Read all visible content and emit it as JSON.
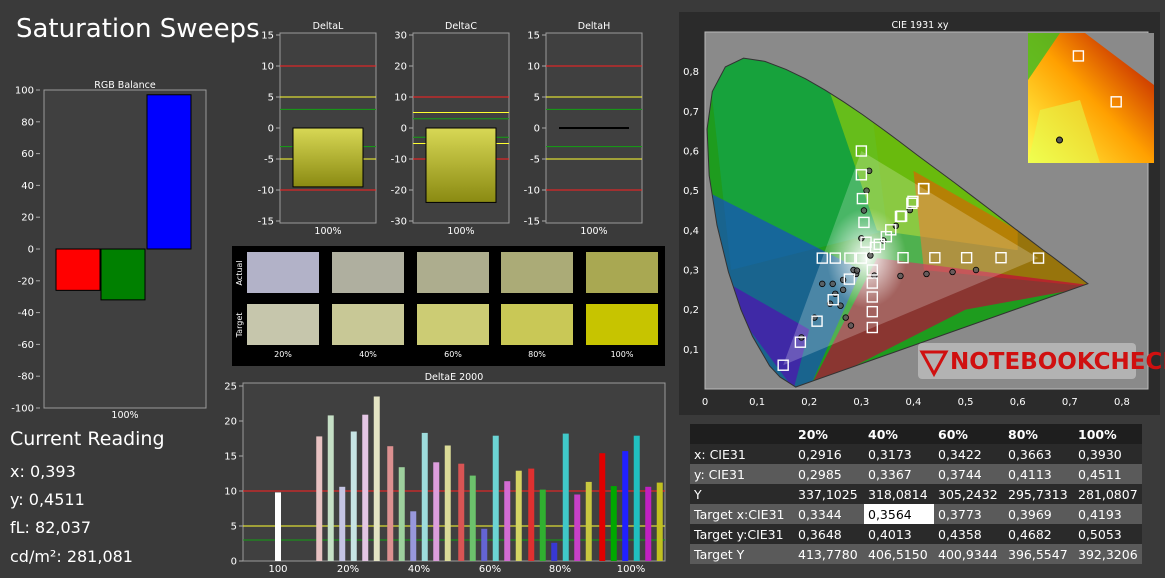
{
  "title": "Saturation Sweeps",
  "current_reading": {
    "heading": "Current Reading",
    "x": "x: 0,393",
    "y": "y: 0,4511",
    "fl": "fL: 82,037",
    "cd": "cd/m²: 281,081"
  },
  "watermark": "NOTEBOOKCHECK",
  "colors": {
    "red": "#ff0000",
    "green": "#008000",
    "blue": "#0000ff",
    "yellow": "#ffff00",
    "lime": "#00c000",
    "grid": "#bfbfbf"
  },
  "chart_data": [
    {
      "id": "rgb-balance",
      "type": "bar",
      "title": "RGB Balance",
      "categories": [
        "R",
        "G",
        "B"
      ],
      "values": [
        -26,
        -32,
        97
      ],
      "colors": [
        "#ff0000",
        "#008000",
        "#0000ff"
      ],
      "xlabel": "100%",
      "ylim": [
        -100,
        100
      ],
      "yticks": [
        "100",
        "80",
        "60",
        "40",
        "20",
        "0",
        "-20",
        "-40",
        "-60",
        "-80",
        "-100"
      ]
    },
    {
      "id": "delta-l",
      "type": "bar",
      "title": "DeltaL",
      "values": [
        -9.5
      ],
      "xlabel": "100%",
      "ylim": [
        -15,
        15
      ],
      "yticks": [
        "15",
        "10",
        "5",
        "0",
        "-5",
        "-10",
        "-15"
      ],
      "reference_lines": [
        {
          "y": 10,
          "color": "red"
        },
        {
          "y": -10,
          "color": "red"
        },
        {
          "y": 5,
          "color": "yellow"
        },
        {
          "y": -5,
          "color": "yellow"
        },
        {
          "y": 3,
          "color": "green"
        },
        {
          "y": -3,
          "color": "green"
        }
      ]
    },
    {
      "id": "delta-c",
      "type": "bar",
      "title": "DeltaC",
      "values": [
        -24
      ],
      "xlabel": "100%",
      "ylim": [
        -30,
        30
      ],
      "yticks": [
        "30",
        "20",
        "10",
        "0",
        "-10",
        "-20",
        "-30"
      ],
      "reference_lines": [
        {
          "y": 10,
          "color": "red"
        },
        {
          "y": -10,
          "color": "red"
        },
        {
          "y": 5,
          "color": "yellow"
        },
        {
          "y": -5,
          "color": "yellow"
        },
        {
          "y": 3,
          "color": "green"
        },
        {
          "y": -3,
          "color": "green"
        }
      ]
    },
    {
      "id": "delta-h",
      "type": "bar",
      "title": "DeltaH",
      "values": [
        0
      ],
      "xlabel": "100%",
      "ylim": [
        -15,
        15
      ],
      "yticks": [
        "15",
        "10",
        "5",
        "0",
        "-5",
        "-10",
        "-15"
      ],
      "reference_lines": [
        {
          "y": 10,
          "color": "red"
        },
        {
          "y": -10,
          "color": "red"
        },
        {
          "y": 5,
          "color": "yellow"
        },
        {
          "y": -5,
          "color": "yellow"
        },
        {
          "y": 3,
          "color": "green"
        },
        {
          "y": -3,
          "color": "green"
        }
      ]
    },
    {
      "id": "swatches",
      "type": "table",
      "rows": [
        "Actual",
        "Target"
      ],
      "columns": [
        "20%",
        "40%",
        "60%",
        "80%",
        "100%"
      ],
      "actual_colors": [
        "#b2b2c8",
        "#afaf9f",
        "#adad8e",
        "#abab77",
        "#a9a852"
      ],
      "target_colors": [
        "#c6c6ac",
        "#c8c896",
        "#cccc74",
        "#c9c856",
        "#c7c400"
      ]
    },
    {
      "id": "delta-e-2000",
      "type": "bar",
      "title": "DeltaE 2000",
      "categories": [
        "100",
        "20%",
        "40%",
        "60%",
        "80%",
        "100%"
      ],
      "ylim": [
        0,
        25
      ],
      "yticks": [
        "25",
        "20",
        "15",
        "10",
        "5",
        "0"
      ],
      "reference_lines": [
        {
          "y": 10,
          "color": "red"
        },
        {
          "y": 5,
          "color": "yellow"
        },
        {
          "y": 3,
          "color": "green"
        }
      ],
      "groups": [
        {
          "bars": [
            {
              "v": 9.8,
              "c": "#ffffff"
            }
          ]
        },
        {
          "bars": [
            {
              "v": 17.8,
              "c": "#e8c2c2"
            },
            {
              "v": 20.8,
              "c": "#c6e0c6"
            },
            {
              "v": 10.6,
              "c": "#c4c4e4"
            },
            {
              "v": 18.5,
              "c": "#c6e4e4"
            },
            {
              "v": 20.9,
              "c": "#e4c6e4"
            },
            {
              "v": 23.5,
              "c": "#e4e4c4"
            }
          ]
        },
        {
          "bars": [
            {
              "v": 16.4,
              "c": "#dc9090"
            },
            {
              "v": 13.4,
              "c": "#9ed09e"
            },
            {
              "v": 7.1,
              "c": "#9898dc"
            },
            {
              "v": 18.3,
              "c": "#9edcdc"
            },
            {
              "v": 14.1,
              "c": "#dc9edc"
            },
            {
              "v": 16.5,
              "c": "#dcdc98"
            }
          ]
        },
        {
          "bars": [
            {
              "v": 13.9,
              "c": "#d85454"
            },
            {
              "v": 12.2,
              "c": "#6cc26c"
            },
            {
              "v": 4.6,
              "c": "#6464d4"
            },
            {
              "v": 17.9,
              "c": "#6cd4d4"
            },
            {
              "v": 11.4,
              "c": "#d46cd4"
            },
            {
              "v": 12.9,
              "c": "#d4d464"
            }
          ]
        },
        {
          "bars": [
            {
              "v": 13.2,
              "c": "#e03030"
            },
            {
              "v": 10.2,
              "c": "#30b030"
            },
            {
              "v": 2.6,
              "c": "#3838d4"
            },
            {
              "v": 18.2,
              "c": "#40c8c8"
            },
            {
              "v": 9.5,
              "c": "#c840c8"
            },
            {
              "v": 11.3,
              "c": "#c8c840"
            }
          ]
        },
        {
          "bars": [
            {
              "v": 15.4,
              "c": "#e00000"
            },
            {
              "v": 10.7,
              "c": "#00a800"
            },
            {
              "v": 15.7,
              "c": "#2020ff"
            },
            {
              "v": 17.9,
              "c": "#20c0c0"
            },
            {
              "v": 10.6,
              "c": "#c020c0"
            },
            {
              "v": 11.2,
              "c": "#c0c020"
            }
          ]
        }
      ]
    },
    {
      "id": "cie-1931",
      "type": "scatter",
      "title": "CIE 1931 xy",
      "xlim": [
        0,
        0.85
      ],
      "ylim": [
        0,
        0.9
      ],
      "xticks": [
        "0",
        "0,1",
        "0,2",
        "0,3",
        "0,4",
        "0,5",
        "0,6",
        "0,7",
        "0,8"
      ],
      "yticks": [
        "0,8",
        "0,7",
        "0,6",
        "0,5",
        "0,4",
        "0,3",
        "0,2",
        "0,1"
      ],
      "targets": [
        [
          0.64,
          0.33
        ],
        [
          0.568,
          0.331
        ],
        [
          0.502,
          0.331
        ],
        [
          0.441,
          0.331
        ],
        [
          0.38,
          0.331
        ],
        [
          0.3,
          0.6
        ],
        [
          0.3,
          0.54
        ],
        [
          0.302,
          0.48
        ],
        [
          0.305,
          0.42
        ],
        [
          0.309,
          0.37
        ],
        [
          0.15,
          0.06
        ],
        [
          0.183,
          0.118
        ],
        [
          0.215,
          0.171
        ],
        [
          0.246,
          0.225
        ],
        [
          0.277,
          0.277
        ],
        [
          0.225,
          0.33
        ],
        [
          0.25,
          0.33
        ],
        [
          0.278,
          0.33
        ],
        [
          0.3,
          0.33
        ],
        [
          0.321,
          0.3
        ],
        [
          0.321,
          0.267
        ],
        [
          0.321,
          0.232
        ],
        [
          0.321,
          0.195
        ],
        [
          0.321,
          0.155
        ],
        [
          0.42,
          0.505
        ],
        [
          0.399,
          0.473
        ],
        [
          0.375,
          0.435
        ],
        [
          0.348,
          0.384
        ],
        [
          0.327,
          0.357
        ],
        [
          0.3344,
          0.3648
        ],
        [
          0.3564,
          0.4013
        ],
        [
          0.3773,
          0.4358
        ],
        [
          0.3969,
          0.4682
        ],
        [
          0.4193,
          0.5053
        ]
      ],
      "measured": [
        [
          0.52,
          0.3
        ],
        [
          0.475,
          0.295
        ],
        [
          0.425,
          0.29
        ],
        [
          0.375,
          0.285
        ],
        [
          0.325,
          0.286
        ],
        [
          0.315,
          0.55
        ],
        [
          0.31,
          0.5
        ],
        [
          0.305,
          0.45
        ],
        [
          0.3,
          0.38
        ],
        [
          0.185,
          0.13
        ],
        [
          0.21,
          0.18
        ],
        [
          0.24,
          0.215
        ],
        [
          0.265,
          0.25
        ],
        [
          0.29,
          0.29
        ],
        [
          0.225,
          0.265
        ],
        [
          0.245,
          0.265
        ],
        [
          0.265,
          0.275
        ],
        [
          0.285,
          0.3
        ],
        [
          0.25,
          0.24
        ],
        [
          0.26,
          0.21
        ],
        [
          0.27,
          0.18
        ],
        [
          0.28,
          0.16
        ],
        [
          0.2916,
          0.2985
        ],
        [
          0.3173,
          0.3367
        ],
        [
          0.3422,
          0.3744
        ],
        [
          0.3663,
          0.4113
        ],
        [
          0.393,
          0.4511
        ]
      ],
      "inset_targets": [
        [
          0.63,
          0.39
        ],
        [
          0.69,
          0.33
        ]
      ],
      "inset_measured": [
        [
          0.6,
          0.28
        ]
      ]
    },
    {
      "id": "readings",
      "type": "table",
      "columns": [
        "20%",
        "40%",
        "60%",
        "80%",
        "100%"
      ],
      "rows": [
        {
          "label": "x: CIE31",
          "values": [
            "0,2916",
            "0,3173",
            "0,3422",
            "0,3663",
            "0,3930"
          ]
        },
        {
          "label": "y: CIE31",
          "values": [
            "0,2985",
            "0,3367",
            "0,3744",
            "0,4113",
            "0,4511"
          ]
        },
        {
          "label": "Y",
          "values": [
            "337,1025",
            "318,0814",
            "305,2432",
            "295,7313",
            "281,0807"
          ]
        },
        {
          "label": "Target x:CIE31",
          "values": [
            "0,3344",
            "0,3564",
            "0,3773",
            "0,3969",
            "0,4193"
          ]
        },
        {
          "label": "Target y:CIE31",
          "values": [
            "0,3648",
            "0,4013",
            "0,4358",
            "0,4682",
            "0,5053"
          ]
        },
        {
          "label": "Target Y",
          "values": [
            "413,7780",
            "406,5150",
            "400,9344",
            "396,5547",
            "392,3206"
          ]
        }
      ]
    }
  ]
}
